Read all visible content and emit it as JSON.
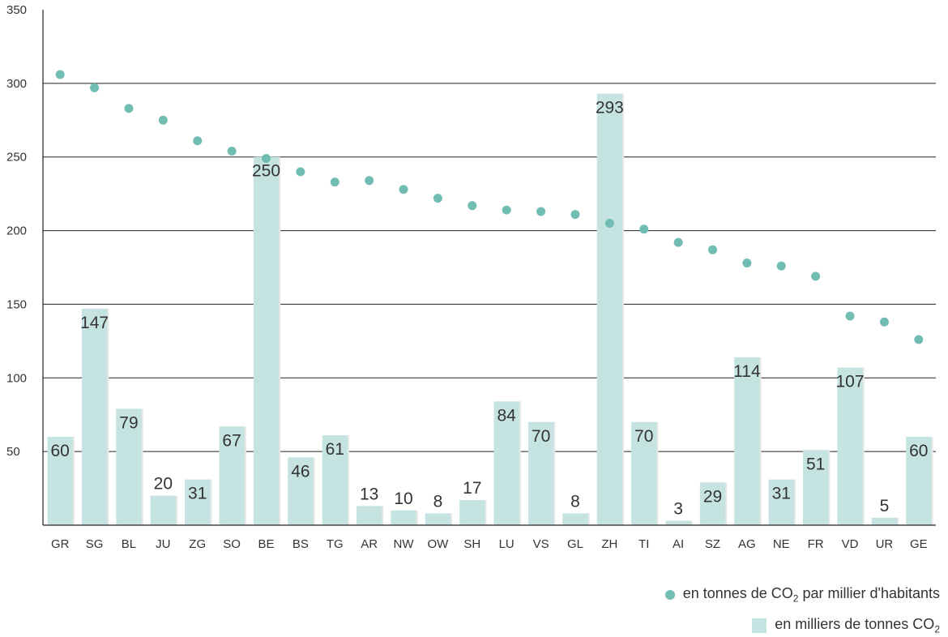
{
  "chart_data": {
    "type": "bar",
    "categories": [
      "GR",
      "SG",
      "BL",
      "JU",
      "ZG",
      "SO",
      "BE",
      "BS",
      "TG",
      "AR",
      "NW",
      "OW",
      "SH",
      "LU",
      "VS",
      "GL",
      "ZH",
      "TI",
      "AI",
      "SZ",
      "AG",
      "NE",
      "FR",
      "VD",
      "UR",
      "GE"
    ],
    "series": [
      {
        "type": "bar",
        "values": [
          60,
          147,
          79,
          20,
          31,
          67,
          250,
          46,
          61,
          13,
          10,
          8,
          17,
          84,
          70,
          8,
          293,
          70,
          3,
          29,
          114,
          31,
          51,
          107,
          5,
          60
        ],
        "color": "#c5e4e1"
      },
      {
        "type": "scatter",
        "values": [
          306,
          297,
          283,
          275,
          261,
          254,
          249,
          240,
          233,
          234,
          228,
          222,
          217,
          214,
          213,
          211,
          205,
          201,
          192,
          187,
          178,
          176,
          169,
          142,
          138,
          126
        ],
        "color": "#72bdb3"
      }
    ],
    "yticks": [
      50,
      100,
      150,
      200,
      250,
      300,
      350
    ],
    "ylim": [
      0,
      350
    ],
    "grid": true,
    "legend_position": "bottom-right"
  },
  "legend": {
    "scatter_prefix": "en tonnes de CO",
    "scatter_sub": "2",
    "scatter_suffix": " par millier d'habitants",
    "bar_prefix": "en milliers de tonnes CO",
    "bar_sub": "2"
  },
  "colors": {
    "bar": "#c5e4e1",
    "dot": "#72bdb3",
    "grid": "#222222"
  }
}
